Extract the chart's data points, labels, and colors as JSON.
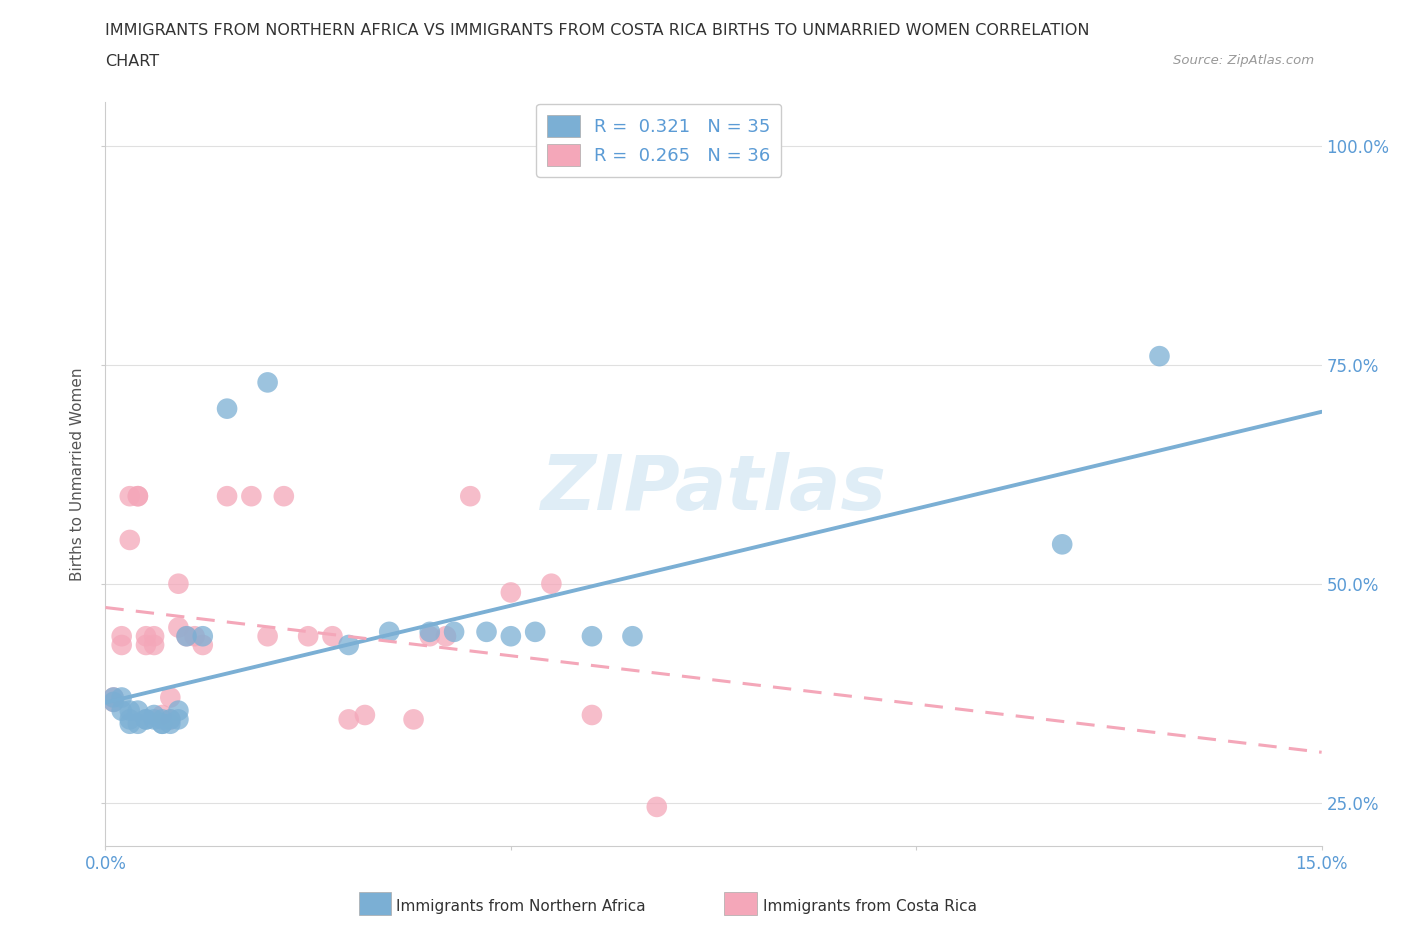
{
  "title_line1": "IMMIGRANTS FROM NORTHERN AFRICA VS IMMIGRANTS FROM COSTA RICA BIRTHS TO UNMARRIED WOMEN CORRELATION",
  "title_line2": "CHART",
  "source": "Source: ZipAtlas.com",
  "ylabel": "Births to Unmarried Women",
  "xlim": [
    0.0,
    0.15
  ],
  "ylim": [
    0.2,
    1.05
  ],
  "blue_R": 0.321,
  "blue_N": 35,
  "pink_R": 0.265,
  "pink_N": 36,
  "blue_color": "#7bafd4",
  "pink_color": "#f4a7b9",
  "legend_blue_label": "Immigrants from Northern Africa",
  "legend_pink_label": "Immigrants from Costa Rica",
  "watermark": "ZIPatlas",
  "blue_scatter_x": [
    0.001,
    0.001,
    0.002,
    0.002,
    0.003,
    0.003,
    0.003,
    0.004,
    0.004,
    0.005,
    0.005,
    0.006,
    0.006,
    0.007,
    0.007,
    0.007,
    0.008,
    0.008,
    0.009,
    0.009,
    0.01,
    0.012,
    0.015,
    0.02,
    0.03,
    0.035,
    0.04,
    0.043,
    0.047,
    0.05,
    0.053,
    0.06,
    0.065,
    0.118,
    0.13
  ],
  "blue_scatter_y": [
    0.365,
    0.37,
    0.355,
    0.37,
    0.345,
    0.355,
    0.34,
    0.355,
    0.34,
    0.345,
    0.345,
    0.345,
    0.35,
    0.34,
    0.345,
    0.34,
    0.34,
    0.345,
    0.345,
    0.355,
    0.44,
    0.44,
    0.7,
    0.73,
    0.43,
    0.445,
    0.445,
    0.445,
    0.445,
    0.44,
    0.445,
    0.44,
    0.44,
    0.545,
    0.76
  ],
  "pink_scatter_x": [
    0.001,
    0.001,
    0.002,
    0.002,
    0.003,
    0.003,
    0.004,
    0.004,
    0.005,
    0.005,
    0.006,
    0.006,
    0.007,
    0.008,
    0.008,
    0.009,
    0.009,
    0.01,
    0.011,
    0.012,
    0.015,
    0.018,
    0.02,
    0.022,
    0.025,
    0.028,
    0.03,
    0.032,
    0.038,
    0.04,
    0.042,
    0.045,
    0.05,
    0.055,
    0.06,
    0.068
  ],
  "pink_scatter_y": [
    0.365,
    0.37,
    0.44,
    0.43,
    0.55,
    0.6,
    0.6,
    0.6,
    0.44,
    0.43,
    0.44,
    0.43,
    0.35,
    0.37,
    0.345,
    0.5,
    0.45,
    0.44,
    0.44,
    0.43,
    0.6,
    0.6,
    0.44,
    0.6,
    0.44,
    0.44,
    0.345,
    0.35,
    0.345,
    0.44,
    0.44,
    0.6,
    0.49,
    0.5,
    0.35,
    0.245
  ],
  "background_color": "#ffffff",
  "grid_color": "#e0e0e0",
  "axis_label_color": "#5b9bd5"
}
